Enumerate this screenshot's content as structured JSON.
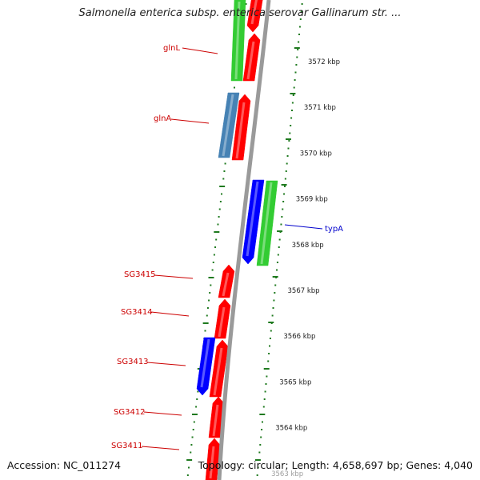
{
  "title": "Salmonella enterica subsp. enterica serovar Gallinarum str. ...",
  "footer": {
    "accession": "Accession: NC_011274",
    "stats": "Topology: circular; Length: 4,658,697 bp; Genes: 4,040"
  },
  "colors": {
    "backbone": "#9a9a9a",
    "ticks": "#1f7a1f",
    "forward_gene": "#ff0000",
    "reverse_gene": "#0000ff",
    "rna_gene": "#33cc33",
    "other_gene": "#4682b4",
    "label_red": "#cc0000",
    "label_blue": "#0000cc"
  },
  "scale_labels": [
    "3572 kbp",
    "3571 kbp",
    "3570 kbp",
    "3569 kbp",
    "3568 kbp",
    "3567 kbp",
    "3566 kbp",
    "3565 kbp",
    "3564 kbp",
    "3563 kbp"
  ],
  "gene_labels": [
    {
      "text": "glnL",
      "color": "red"
    },
    {
      "text": "glnA",
      "color": "red"
    },
    {
      "text": "typA",
      "color": "blue"
    },
    {
      "text": "SG3415",
      "color": "red"
    },
    {
      "text": "SG3414",
      "color": "red"
    },
    {
      "text": "SG3413",
      "color": "red"
    },
    {
      "text": "SG3412",
      "color": "red"
    },
    {
      "text": "SG3411",
      "color": "red"
    }
  ],
  "features": [
    {
      "track": "outer-left",
      "kind": "rna",
      "strand": "forward",
      "label": "glnL"
    },
    {
      "track": "inner-left",
      "kind": "forward",
      "strand": "forward",
      "label": "glnL"
    },
    {
      "track": "outer-left",
      "kind": "other",
      "strand": "reverse",
      "label": "glnA"
    },
    {
      "track": "inner-left",
      "kind": "forward",
      "strand": "forward",
      "label": "glnA"
    },
    {
      "track": "inner-right",
      "kind": "reverse",
      "strand": "reverse",
      "label": "typA"
    },
    {
      "track": "outer-right",
      "kind": "rna",
      "strand": "reverse",
      "label": "typA"
    },
    {
      "track": "inner-left",
      "kind": "forward",
      "strand": "forward",
      "label": "SG3415"
    },
    {
      "track": "inner-left",
      "kind": "forward",
      "strand": "forward",
      "label": "SG3414"
    },
    {
      "track": "outer-left",
      "kind": "reverse",
      "strand": "reverse",
      "label": "SG3413"
    },
    {
      "track": "inner-left",
      "kind": "forward",
      "strand": "forward",
      "label": "SG3413"
    },
    {
      "track": "inner-left",
      "kind": "forward",
      "strand": "forward",
      "label": "SG3412"
    },
    {
      "track": "inner-left",
      "kind": "forward",
      "strand": "forward",
      "label": "SG3411"
    }
  ]
}
